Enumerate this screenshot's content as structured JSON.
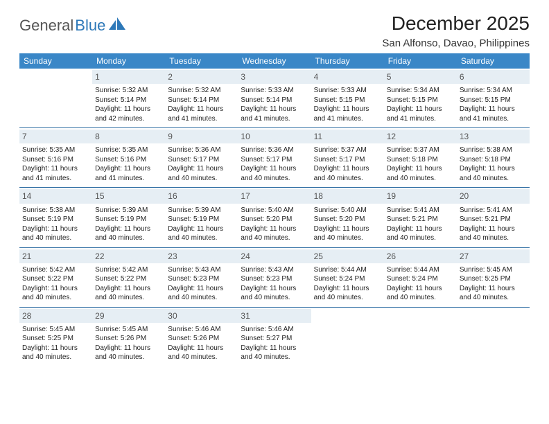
{
  "brand": {
    "part1": "General",
    "part2": "Blue"
  },
  "title": "December 2025",
  "location": "San Alfonso, Davao, Philippines",
  "colors": {
    "header_bg": "#3a87c7",
    "header_text": "#ffffff",
    "daynum_bg": "#e6eef4",
    "rule": "#2f6ea3",
    "brand_accent": "#2d78b8",
    "brand_gray": "#555555"
  },
  "weekdays": [
    "Sunday",
    "Monday",
    "Tuesday",
    "Wednesday",
    "Thursday",
    "Friday",
    "Saturday"
  ],
  "start_weekday": 1,
  "days": {
    "1": {
      "sunrise": "5:32 AM",
      "sunset": "5:14 PM",
      "daylight": "11 hours and 42 minutes."
    },
    "2": {
      "sunrise": "5:32 AM",
      "sunset": "5:14 PM",
      "daylight": "11 hours and 41 minutes."
    },
    "3": {
      "sunrise": "5:33 AM",
      "sunset": "5:14 PM",
      "daylight": "11 hours and 41 minutes."
    },
    "4": {
      "sunrise": "5:33 AM",
      "sunset": "5:15 PM",
      "daylight": "11 hours and 41 minutes."
    },
    "5": {
      "sunrise": "5:34 AM",
      "sunset": "5:15 PM",
      "daylight": "11 hours and 41 minutes."
    },
    "6": {
      "sunrise": "5:34 AM",
      "sunset": "5:15 PM",
      "daylight": "11 hours and 41 minutes."
    },
    "7": {
      "sunrise": "5:35 AM",
      "sunset": "5:16 PM",
      "daylight": "11 hours and 41 minutes."
    },
    "8": {
      "sunrise": "5:35 AM",
      "sunset": "5:16 PM",
      "daylight": "11 hours and 41 minutes."
    },
    "9": {
      "sunrise": "5:36 AM",
      "sunset": "5:17 PM",
      "daylight": "11 hours and 40 minutes."
    },
    "10": {
      "sunrise": "5:36 AM",
      "sunset": "5:17 PM",
      "daylight": "11 hours and 40 minutes."
    },
    "11": {
      "sunrise": "5:37 AM",
      "sunset": "5:17 PM",
      "daylight": "11 hours and 40 minutes."
    },
    "12": {
      "sunrise": "5:37 AM",
      "sunset": "5:18 PM",
      "daylight": "11 hours and 40 minutes."
    },
    "13": {
      "sunrise": "5:38 AM",
      "sunset": "5:18 PM",
      "daylight": "11 hours and 40 minutes."
    },
    "14": {
      "sunrise": "5:38 AM",
      "sunset": "5:19 PM",
      "daylight": "11 hours and 40 minutes."
    },
    "15": {
      "sunrise": "5:39 AM",
      "sunset": "5:19 PM",
      "daylight": "11 hours and 40 minutes."
    },
    "16": {
      "sunrise": "5:39 AM",
      "sunset": "5:19 PM",
      "daylight": "11 hours and 40 minutes."
    },
    "17": {
      "sunrise": "5:40 AM",
      "sunset": "5:20 PM",
      "daylight": "11 hours and 40 minutes."
    },
    "18": {
      "sunrise": "5:40 AM",
      "sunset": "5:20 PM",
      "daylight": "11 hours and 40 minutes."
    },
    "19": {
      "sunrise": "5:41 AM",
      "sunset": "5:21 PM",
      "daylight": "11 hours and 40 minutes."
    },
    "20": {
      "sunrise": "5:41 AM",
      "sunset": "5:21 PM",
      "daylight": "11 hours and 40 minutes."
    },
    "21": {
      "sunrise": "5:42 AM",
      "sunset": "5:22 PM",
      "daylight": "11 hours and 40 minutes."
    },
    "22": {
      "sunrise": "5:42 AM",
      "sunset": "5:22 PM",
      "daylight": "11 hours and 40 minutes."
    },
    "23": {
      "sunrise": "5:43 AM",
      "sunset": "5:23 PM",
      "daylight": "11 hours and 40 minutes."
    },
    "24": {
      "sunrise": "5:43 AM",
      "sunset": "5:23 PM",
      "daylight": "11 hours and 40 minutes."
    },
    "25": {
      "sunrise": "5:44 AM",
      "sunset": "5:24 PM",
      "daylight": "11 hours and 40 minutes."
    },
    "26": {
      "sunrise": "5:44 AM",
      "sunset": "5:24 PM",
      "daylight": "11 hours and 40 minutes."
    },
    "27": {
      "sunrise": "5:45 AM",
      "sunset": "5:25 PM",
      "daylight": "11 hours and 40 minutes."
    },
    "28": {
      "sunrise": "5:45 AM",
      "sunset": "5:25 PM",
      "daylight": "11 hours and 40 minutes."
    },
    "29": {
      "sunrise": "5:45 AM",
      "sunset": "5:26 PM",
      "daylight": "11 hours and 40 minutes."
    },
    "30": {
      "sunrise": "5:46 AM",
      "sunset": "5:26 PM",
      "daylight": "11 hours and 40 minutes."
    },
    "31": {
      "sunrise": "5:46 AM",
      "sunset": "5:27 PM",
      "daylight": "11 hours and 40 minutes."
    }
  },
  "labels": {
    "sunrise": "Sunrise:",
    "sunset": "Sunset:",
    "daylight": "Daylight:"
  }
}
